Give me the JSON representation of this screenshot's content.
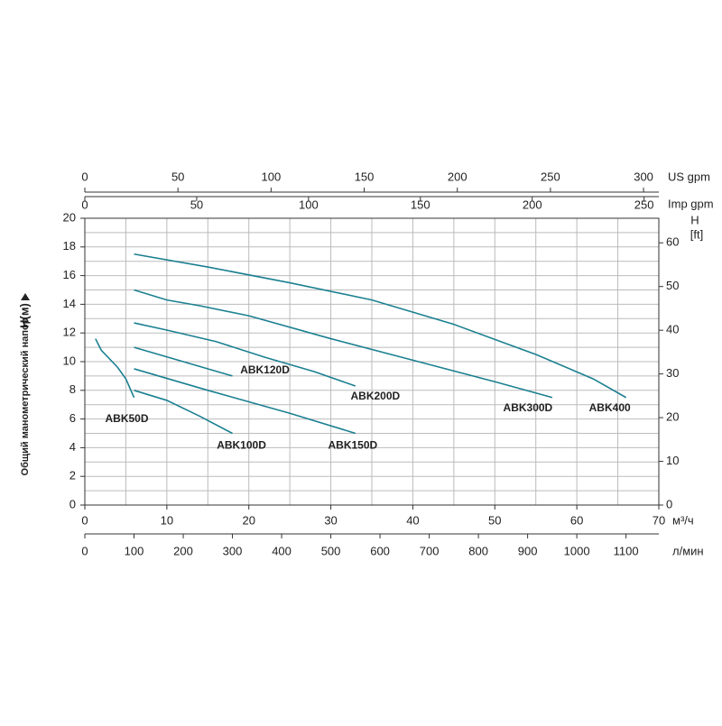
{
  "chart_data": {
    "type": "line",
    "xlabel": "м³/ч",
    "ylabel": "Общий манометрический напор",
    "yunit": "H(м)",
    "y2label": "H",
    "y2unit": "[ft]",
    "xlim": [
      0,
      70
    ],
    "xticks": [
      0,
      10,
      20,
      30,
      40,
      50,
      60,
      70
    ],
    "x_grid": [
      0,
      5,
      10,
      15,
      20,
      25,
      30,
      35,
      40,
      45,
      50,
      55,
      60,
      65,
      70
    ],
    "ylim": [
      0,
      20
    ],
    "yticks": [
      0,
      2,
      4,
      6,
      8,
      10,
      12,
      14,
      16,
      18,
      20
    ],
    "y_grid": [
      0,
      1,
      2,
      3,
      4,
      5,
      6,
      7,
      8,
      9,
      10,
      11,
      12,
      13,
      14,
      15,
      16,
      17,
      18,
      19,
      20
    ],
    "y2lim": [
      0,
      65.62
    ],
    "y2ticks": [
      0,
      10,
      20,
      30,
      40,
      50,
      60
    ],
    "extra_x_axes": [
      {
        "label": "US gpm",
        "lim": [
          0,
          308.2
        ],
        "ticks": [
          0,
          50,
          100,
          150,
          200,
          250,
          300
        ]
      },
      {
        "label": "Imp gpm",
        "lim": [
          0,
          256.6
        ],
        "ticks": [
          0,
          50,
          100,
          150,
          200,
          250
        ]
      },
      {
        "label": "л/мин",
        "lim": [
          0,
          1166.7
        ],
        "ticks": [
          0,
          100,
          200,
          300,
          400,
          500,
          600,
          700,
          800,
          900,
          1000,
          1100
        ]
      }
    ],
    "grid": true,
    "series": [
      {
        "name": "ABK50D",
        "color": "#1b8091",
        "x": [
          1.3,
          2,
          4,
          5,
          6
        ],
        "values": [
          11.6,
          10.8,
          9.6,
          8.8,
          7.5
        ]
      },
      {
        "name": "ABK100D",
        "color": "#1b8091",
        "x": [
          6,
          10,
          14,
          18
        ],
        "values": [
          8,
          7.3,
          6.2,
          5
        ]
      },
      {
        "name": "ABK120D",
        "color": "#1b8091",
        "x": [
          6,
          12,
          18
        ],
        "values": [
          11,
          10,
          9
        ]
      },
      {
        "name": "ABK150D",
        "color": "#1b8091",
        "x": [
          6,
          15,
          25,
          33
        ],
        "values": [
          9.5,
          8,
          6.4,
          5
        ]
      },
      {
        "name": "ABK200D",
        "color": "#1b8091",
        "x": [
          6,
          10,
          16,
          22,
          28,
          33
        ],
        "values": [
          12.7,
          12.2,
          11.4,
          10.3,
          9.3,
          8.3
        ]
      },
      {
        "name": "ABK300D",
        "color": "#1b8091",
        "x": [
          6,
          10,
          14,
          20,
          30,
          40,
          50,
          57
        ],
        "values": [
          15,
          14.3,
          13.9,
          13.2,
          11.6,
          10.1,
          8.6,
          7.5
        ]
      },
      {
        "name": "ABK400",
        "color": "#1b8091",
        "x": [
          6,
          15,
          25,
          35,
          45,
          55,
          62,
          66
        ],
        "values": [
          17.5,
          16.6,
          15.5,
          14.3,
          12.6,
          10.5,
          8.8,
          7.5
        ]
      }
    ]
  }
}
